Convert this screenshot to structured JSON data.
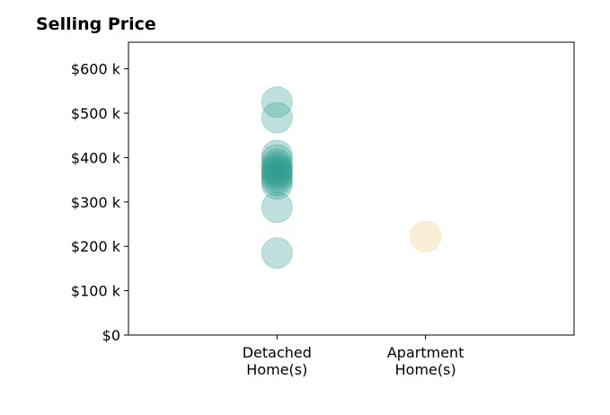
{
  "chart_data": {
    "type": "scatter",
    "title": "Selling Price",
    "xlabel": "",
    "ylabel": "",
    "categories": [
      "Detached\nHome(s)",
      "Apartment\nHome(s)"
    ],
    "x_range": [
      -1,
      2
    ],
    "ylim": [
      0,
      660000
    ],
    "y_ticks": [
      0,
      100000,
      200000,
      300000,
      400000,
      500000,
      600000
    ],
    "y_tick_labels": [
      "$0",
      "$100 k",
      "$200 k",
      "$300 k",
      "$400 k",
      "$500 k",
      "$600 k"
    ],
    "grid": false,
    "series": [
      {
        "category": 0,
        "color": "#2a9d8f",
        "values": [
          525000,
          490000,
          405000,
          395000,
          385000,
          378000,
          372000,
          368000,
          362000,
          355000,
          348000,
          340000,
          288000,
          185000
        ]
      },
      {
        "category": 1,
        "color": "#e9c46a",
        "values": [
          222000
        ]
      }
    ]
  }
}
